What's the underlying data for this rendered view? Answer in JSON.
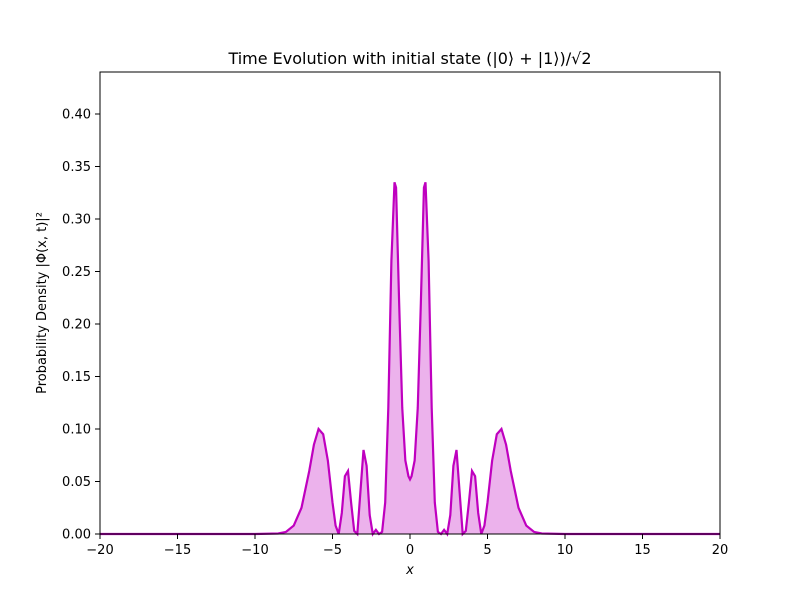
{
  "chart_data": {
    "type": "line",
    "title": "Time Evolution with initial state (|0⟩ + |1⟩)/√2",
    "xlabel": "x",
    "ylabel": "Probability Density |Φ(x, t)|²",
    "xlim": [
      -20,
      20
    ],
    "ylim": [
      0,
      0.44
    ],
    "x_ticks": [
      -20,
      -15,
      -10,
      -5,
      0,
      5,
      10,
      15,
      20
    ],
    "x_tick_labels": [
      "−20",
      "−15",
      "−10",
      "−5",
      "0",
      "5",
      "10",
      "15",
      "20"
    ],
    "y_ticks": [
      0,
      0.05,
      0.1,
      0.15,
      0.2,
      0.25,
      0.3,
      0.35,
      0.4
    ],
    "y_tick_labels": [
      "0.00",
      "0.05",
      "0.10",
      "0.15",
      "0.20",
      "0.25",
      "0.30",
      "0.35",
      "0.40"
    ],
    "grid": false,
    "line_color": "#bf00bf",
    "fill_color": "#bf00bf",
    "fill_opacity": 0.3,
    "series": [
      {
        "x": [
          -20,
          -10,
          -8.5,
          -8,
          -7.5,
          -7,
          -6.5,
          -6.2,
          -5.9,
          -5.6,
          -5.3,
          -5,
          -4.8,
          -4.6,
          -4.4,
          -4.2,
          -4,
          -3.8,
          -3.6,
          -3.4,
          -3.2,
          -3,
          -2.8,
          -2.6,
          -2.4,
          -2.2,
          -2,
          -1.8,
          -1.6,
          -1.4,
          -1.2,
          -1,
          -0.9,
          -0.7,
          -0.5,
          -0.3,
          -0.1,
          0,
          0.1,
          0.3,
          0.5,
          0.7,
          0.9,
          1,
          1.2,
          1.4,
          1.6,
          1.8,
          2,
          2.2,
          2.4,
          2.6,
          2.8,
          3,
          3.2,
          3.4,
          3.6,
          3.8,
          4,
          4.2,
          4.4,
          4.6,
          4.8,
          5,
          5.3,
          5.6,
          5.9,
          6.2,
          6.5,
          7,
          7.5,
          8,
          8.5,
          10,
          20
        ],
        "y": [
          0,
          0,
          0.0005,
          0.002,
          0.008,
          0.025,
          0.06,
          0.085,
          0.1,
          0.095,
          0.07,
          0.03,
          0.008,
          0.0,
          0.02,
          0.055,
          0.06,
          0.03,
          0.003,
          0.0,
          0.04,
          0.08,
          0.065,
          0.018,
          0.0,
          0.004,
          0.0,
          0.002,
          0.03,
          0.12,
          0.26,
          0.335,
          0.33,
          0.22,
          0.12,
          0.07,
          0.055,
          0.052,
          0.055,
          0.07,
          0.12,
          0.22,
          0.33,
          0.335,
          0.26,
          0.12,
          0.03,
          0.002,
          0.0,
          0.004,
          0.0,
          0.018,
          0.065,
          0.08,
          0.04,
          0.0,
          0.003,
          0.03,
          0.06,
          0.055,
          0.02,
          0.0,
          0.008,
          0.03,
          0.07,
          0.095,
          0.1,
          0.085,
          0.06,
          0.025,
          0.008,
          0.002,
          0.0005,
          0,
          0
        ]
      }
    ]
  }
}
